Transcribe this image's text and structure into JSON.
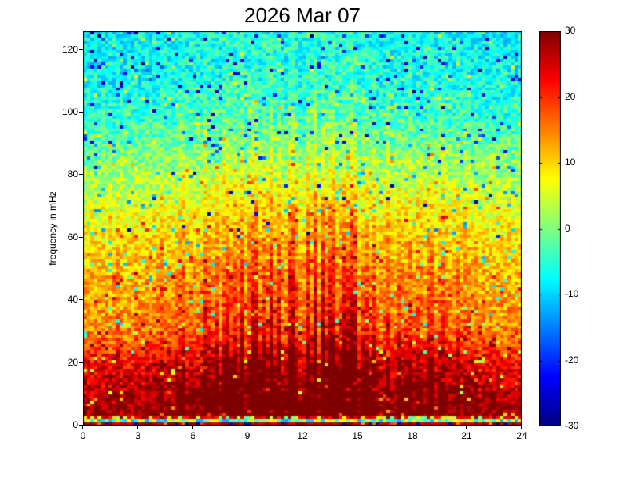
{
  "figure": {
    "background": "#ffffff"
  },
  "chart_data": {
    "type": "heatmap",
    "title": "2026 Mar 07",
    "xlabel": "",
    "ylabel": "frequency in mHz",
    "xlim": [
      0,
      24
    ],
    "ylim": [
      0,
      126
    ],
    "x_ticks": [
      0,
      3,
      6,
      9,
      12,
      15,
      18,
      21,
      24
    ],
    "y_ticks": [
      0,
      20,
      40,
      60,
      80,
      100,
      120
    ],
    "grid_on": false,
    "legend": "none",
    "colorbar": {
      "position": "right",
      "min": -30,
      "max": 30,
      "ticks": [
        30,
        20,
        10,
        0,
        -10,
        -20,
        -30
      ],
      "colormap": "jet"
    },
    "field": {
      "description": "Dynamic power spectrum: power (colorbar units, -30..30) vs time of day 0-24 h (x) and frequency 0-126 mHz (y). Power is maximal (dark red, ~30) below ~20 mHz, decreases with frequency to cyan (~-8) above ~100 mHz, with strong noisy speckle, vertical striations enhanced near midday reaching ~70 mHz, a cyan/yellow stripe at ~1-2 mHz, and a mixed dark-red/dark-blue bottom row at 0-1 mHz.",
      "columns": 120,
      "rows": 126,
      "seed": 20260307,
      "mean_profile_freq_value": [
        [
          0,
          28
        ],
        [
          4,
          27
        ],
        [
          10,
          26
        ],
        [
          16,
          23
        ],
        [
          22,
          20
        ],
        [
          30,
          13.5
        ],
        [
          40,
          12
        ],
        [
          50,
          10.5
        ],
        [
          60,
          8
        ],
        [
          70,
          5
        ],
        [
          80,
          1.5
        ],
        [
          88,
          -1.5
        ],
        [
          95,
          -4
        ],
        [
          103,
          -6
        ],
        [
          112,
          -7.5
        ],
        [
          126,
          -8
        ]
      ],
      "noise_amplitude": 5.2,
      "diurnal_enhancement": {
        "peak_hour": 12.8,
        "sigma_hours": 5.4,
        "column_boost_max": 24
      },
      "speckle": {
        "cold_speck_chance": 0.035,
        "deep_blue_speck_chance": 0.008,
        "warm_speck_chance": 0.037
      },
      "bottom_rows": {
        "row0_0to1mHz": "dark red with scattered dark blue/black segments",
        "row1_1to2mHz": "cyan-to-yellow stripe, values -13 to 9"
      }
    },
    "colors": {
      "frame": "#000000",
      "text": "#000000",
      "background": "#ffffff",
      "colormap_top": "#800000",
      "colormap_bottom": "#000080"
    }
  }
}
